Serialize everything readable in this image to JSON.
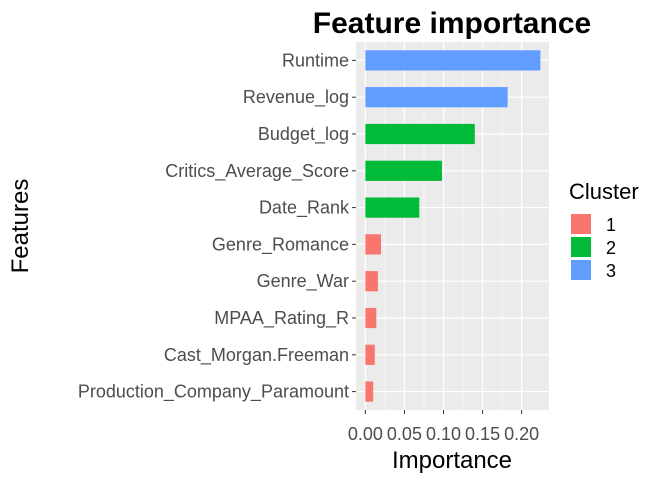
{
  "chart_data": {
    "type": "bar",
    "orientation": "horizontal",
    "title": "Feature importance",
    "xlabel": "Importance",
    "ylabel": "Features",
    "xlim": [
      -0.012,
      0.235
    ],
    "x_ticks": [
      0.0,
      0.05,
      0.1,
      0.15,
      0.2
    ],
    "x_tick_labels": [
      "0.00",
      "0.05",
      "0.10",
      "0.15",
      "0.20"
    ],
    "grid": true,
    "legend": {
      "title": "Cluster",
      "placement": "right",
      "entries": [
        {
          "label": "1",
          "color": "#F8766D"
        },
        {
          "label": "2",
          "color": "#00BA38"
        },
        {
          "label": "3",
          "color": "#619CFF"
        }
      ]
    },
    "categories": [
      "Runtime",
      "Revenue_log",
      "Budget_log",
      "Critics_Average_Score",
      "Date_Rank",
      "Genre_Romance",
      "Genre_War",
      "MPAA_Rating_R",
      "Cast_Morgan.Freeman",
      "Production_Company_Paramount"
    ],
    "values": [
      0.224,
      0.182,
      0.14,
      0.098,
      0.069,
      0.02,
      0.016,
      0.014,
      0.012,
      0.01
    ],
    "clusters": [
      "3",
      "3",
      "2",
      "2",
      "2",
      "1",
      "1",
      "1",
      "1",
      "1"
    ]
  }
}
